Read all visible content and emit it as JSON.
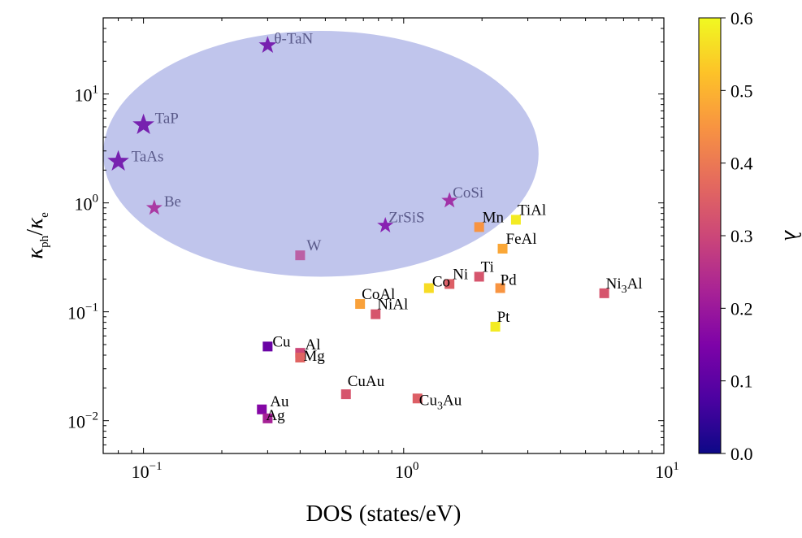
{
  "chart_data": {
    "type": "scatter",
    "xscale": "log",
    "yscale": "log",
    "xlim": [
      0.07,
      10
    ],
    "ylim": [
      0.005,
      50
    ],
    "xlabel": "DOS (states/eV)",
    "ylabel": "κph/κe",
    "x_ticks": [
      {
        "value": 0.1,
        "base": "10",
        "exp": "−1"
      },
      {
        "value": 1,
        "base": "10",
        "exp": "0"
      },
      {
        "value": 10,
        "base": "10",
        "exp": "1"
      }
    ],
    "y_ticks": [
      {
        "value": 0.01,
        "base": "10",
        "exp": "−2"
      },
      {
        "value": 0.1,
        "base": "10",
        "exp": "−1"
      },
      {
        "value": 1,
        "base": "10",
        "exp": "0"
      },
      {
        "value": 10,
        "base": "10",
        "exp": "1"
      }
    ],
    "colorbar": {
      "label": "λ",
      "min": 0.0,
      "max": 0.6,
      "colormap": "plasma",
      "ticks": [
        "0.0",
        "0.1",
        "0.2",
        "0.3",
        "0.4",
        "0.5",
        "0.6"
      ]
    },
    "region": {
      "shape": "ellipse",
      "color": "#8c96dc",
      "x_range": [
        0.07,
        3.3
      ],
      "y_range": [
        0.21,
        38
      ]
    },
    "points": [
      {
        "label": "θ-TaN",
        "label_base": "θ-TaN",
        "label_sub": "",
        "label_tail": "",
        "x": 0.3,
        "y": 28,
        "lambda": 0.12,
        "marker": "star",
        "size": "medium",
        "label_dx": 8,
        "label_dy": -2
      },
      {
        "label": "TaP",
        "label_base": "TaP",
        "label_sub": "",
        "label_tail": "",
        "x": 0.1,
        "y": 5.2,
        "lambda": 0.12,
        "marker": "star",
        "size": "large",
        "label_dx": 14,
        "label_dy": -2
      },
      {
        "label": "TaAs",
        "label_base": "TaAs",
        "label_sub": "",
        "label_tail": "",
        "x": 0.08,
        "y": 2.4,
        "lambda": 0.12,
        "marker": "star",
        "size": "large",
        "label_dx": 16,
        "label_dy": 0
      },
      {
        "label": "Be",
        "label_base": "Be",
        "label_sub": "",
        "label_tail": "",
        "x": 0.11,
        "y": 0.9,
        "lambda": 0.22,
        "marker": "star",
        "size": "small",
        "label_dx": 12,
        "label_dy": -2
      },
      {
        "label": "CoSi",
        "label_base": "CoSi",
        "label_sub": "",
        "label_tail": "",
        "x": 1.5,
        "y": 1.05,
        "lambda": 0.2,
        "marker": "star",
        "size": "small",
        "label_dx": 4,
        "label_dy": -4
      },
      {
        "label": "ZrSiS",
        "label_base": "ZrSiS",
        "label_sub": "",
        "label_tail": "",
        "x": 0.85,
        "y": 0.62,
        "lambda": 0.15,
        "marker": "star",
        "size": "small",
        "label_dx": 4,
        "label_dy": -4
      },
      {
        "label": "W",
        "label_base": "W",
        "label_sub": "",
        "label_tail": "",
        "x": 0.4,
        "y": 0.33,
        "lambda": 0.26,
        "marker": "square",
        "size": "normal",
        "label_dx": 8,
        "label_dy": -6
      },
      {
        "label": "TiAl",
        "label_base": "TiAl",
        "label_sub": "",
        "label_tail": "",
        "x": 2.7,
        "y": 0.7,
        "lambda": 0.58,
        "marker": "square",
        "size": "normal",
        "label_dx": 2,
        "label_dy": -6
      },
      {
        "label": "Mn",
        "label_base": "Mn",
        "label_sub": "",
        "label_tail": "",
        "x": 1.95,
        "y": 0.6,
        "lambda": 0.45,
        "marker": "square",
        "size": "normal",
        "label_dx": 4,
        "label_dy": -6
      },
      {
        "label": "FeAl",
        "label_base": "FeAl",
        "label_sub": "",
        "label_tail": "",
        "x": 2.4,
        "y": 0.38,
        "lambda": 0.48,
        "marker": "square",
        "size": "normal",
        "label_dx": 4,
        "label_dy": -6
      },
      {
        "label": "Ti",
        "label_base": "Ti",
        "label_sub": "",
        "label_tail": "",
        "x": 1.95,
        "y": 0.21,
        "lambda": 0.33,
        "marker": "square",
        "size": "normal",
        "label_dx": 2,
        "label_dy": -6
      },
      {
        "label": "Ni",
        "label_base": "Ni",
        "label_sub": "",
        "label_tail": "",
        "x": 1.5,
        "y": 0.18,
        "lambda": 0.35,
        "marker": "square",
        "size": "normal",
        "label_dx": 4,
        "label_dy": -6
      },
      {
        "label": "Co",
        "label_base": "Co",
        "label_sub": "",
        "label_tail": "",
        "x": 1.25,
        "y": 0.165,
        "lambda": 0.56,
        "marker": "square",
        "size": "normal",
        "label_dx": 4,
        "label_dy": -2
      },
      {
        "label": "Pd",
        "label_base": "Pd",
        "label_sub": "",
        "label_tail": "",
        "x": 2.35,
        "y": 0.165,
        "lambda": 0.45,
        "marker": "square",
        "size": "normal",
        "label_dx": 0,
        "label_dy": -4
      },
      {
        "label": "Ni3Al",
        "label_base": "Ni",
        "label_sub": "3",
        "label_tail": "Al",
        "x": 5.9,
        "y": 0.148,
        "lambda": 0.33,
        "marker": "square",
        "size": "normal",
        "label_dx": 2,
        "label_dy": -6
      },
      {
        "label": "CoAl",
        "label_base": "CoAl",
        "label_sub": "",
        "label_tail": "",
        "x": 0.68,
        "y": 0.118,
        "lambda": 0.47,
        "marker": "square",
        "size": "normal",
        "label_dx": 2,
        "label_dy": -6
      },
      {
        "label": "NiAl",
        "label_base": "NiAl",
        "label_sub": "",
        "label_tail": "",
        "x": 0.78,
        "y": 0.095,
        "lambda": 0.33,
        "marker": "square",
        "size": "normal",
        "label_dx": 2,
        "label_dy": -6
      },
      {
        "label": "Pt",
        "label_base": "Pt",
        "label_sub": "",
        "label_tail": "",
        "x": 2.25,
        "y": 0.073,
        "lambda": 0.58,
        "marker": "square",
        "size": "normal",
        "label_dx": 2,
        "label_dy": -6
      },
      {
        "label": "Cu",
        "label_base": "Cu",
        "label_sub": "",
        "label_tail": "",
        "x": 0.3,
        "y": 0.048,
        "lambda": 0.12,
        "marker": "square",
        "size": "normal",
        "label_dx": 6,
        "label_dy": 0
      },
      {
        "label": "Al",
        "label_base": "Al",
        "label_sub": "",
        "label_tail": "",
        "x": 0.4,
        "y": 0.042,
        "lambda": 0.3,
        "marker": "square",
        "size": "normal",
        "label_dx": 6,
        "label_dy": -4
      },
      {
        "label": "Mg",
        "label_base": "Mg",
        "label_sub": "",
        "label_tail": "",
        "x": 0.4,
        "y": 0.038,
        "lambda": 0.36,
        "marker": "square",
        "size": "normal",
        "label_dx": 4,
        "label_dy": 4
      },
      {
        "label": "CuAu",
        "label_base": "CuAu",
        "label_sub": "",
        "label_tail": "",
        "x": 0.6,
        "y": 0.0175,
        "lambda": 0.33,
        "marker": "square",
        "size": "normal",
        "label_dx": 2,
        "label_dy": -10
      },
      {
        "label": "Cu3Au",
        "label_base": "Cu",
        "label_sub": "3",
        "label_tail": "Au",
        "x": 1.13,
        "y": 0.016,
        "lambda": 0.35,
        "marker": "square",
        "size": "normal",
        "label_dx": 2,
        "label_dy": 8
      },
      {
        "label": "Au",
        "label_base": "Au",
        "label_sub": "",
        "label_tail": "",
        "x": 0.285,
        "y": 0.0127,
        "lambda": 0.16,
        "marker": "square",
        "size": "normal",
        "label_dx": 10,
        "label_dy": -4
      },
      {
        "label": "Ag",
        "label_base": "Ag",
        "label_sub": "",
        "label_tail": "",
        "x": 0.3,
        "y": 0.0105,
        "lambda": 0.22,
        "marker": "square",
        "size": "normal",
        "label_dx": -2,
        "label_dy": 2
      }
    ]
  }
}
